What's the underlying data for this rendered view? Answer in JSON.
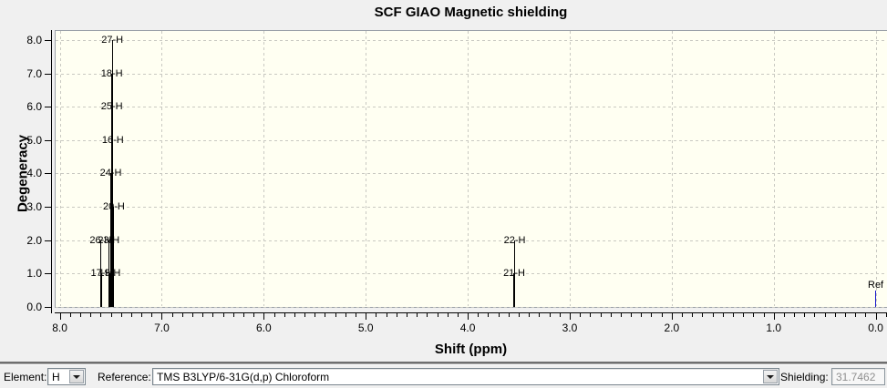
{
  "chart_data": {
    "type": "bar",
    "subtype": "stick-spectrum",
    "title": "SCF GIAO Magnetic shielding",
    "xlabel": "Shift (ppm)",
    "ylabel": "Degeneracy",
    "x_axis_reversed": true,
    "x_range_ppm": [
      8.05,
      -0.12
    ],
    "y_range": [
      0,
      8.3
    ],
    "grid": true,
    "x_tick_values": [
      8,
      7,
      6,
      5,
      4,
      3,
      2,
      1,
      0
    ],
    "x_tick_labels": [
      "8.0",
      "7.0",
      "6.0",
      "5.0",
      "4.0",
      "3.0",
      "2.0",
      "1.0",
      "0.0"
    ],
    "x_minor_tick_step": 0.1,
    "y_tick_values": [
      0,
      1,
      2,
      3,
      4,
      5,
      6,
      7,
      8
    ],
    "y_tick_labels": [
      "0.0",
      "1.0",
      "2.0",
      "3.0",
      "4.0",
      "5.0",
      "6.0",
      "7.0",
      "8.0"
    ],
    "peaks": [
      {
        "label": "27-H",
        "shift_ppm": 7.485,
        "degeneracy": 8
      },
      {
        "label": "18-H",
        "shift_ppm": 7.49,
        "degeneracy": 7
      },
      {
        "label": "25-H",
        "shift_ppm": 7.49,
        "degeneracy": 6
      },
      {
        "label": "16-H",
        "shift_ppm": 7.48,
        "degeneracy": 5
      },
      {
        "label": "24-H",
        "shift_ppm": 7.5,
        "degeneracy": 4
      },
      {
        "label": "20-H",
        "shift_ppm": 7.47,
        "degeneracy": 3
      },
      {
        "label": "26-H",
        "shift_ppm": 7.6,
        "degeneracy": 2
      },
      {
        "label": "23-H",
        "shift_ppm": 7.52,
        "degeneracy": 2
      },
      {
        "label": "17-H",
        "shift_ppm": 7.59,
        "degeneracy": 1
      },
      {
        "label": "19-H",
        "shift_ppm": 7.51,
        "degeneracy": 1
      },
      {
        "label": "22-H",
        "shift_ppm": 3.54,
        "degeneracy": 2
      },
      {
        "label": "21-H",
        "shift_ppm": 3.545,
        "degeneracy": 1
      },
      {
        "label": "Ref",
        "shift_ppm": 0.0,
        "degeneracy": 0.5,
        "is_reference": true,
        "label_dy": -6
      }
    ]
  },
  "toolbar": {
    "element_label": "Element:",
    "element_value": "H",
    "reference_label": "Reference:",
    "reference_value": "TMS B3LYP/6-31G(d,p) Chloroform",
    "shielding_label": "Shielding:",
    "shielding_value": "31.7462"
  },
  "icons": {
    "element_dropdown": "chevron-down-icon",
    "reference_dropdown": "chevron-down-icon"
  },
  "colors": {
    "window_bg": "#f0f0f0",
    "plot_bg": "#fffff2",
    "plot_border": "#9aa0a8",
    "grid": "#c9c9c2",
    "peak": "#000000",
    "ref_peak": "#1a1acc",
    "axis": "#000000",
    "disabled_text": "#8f8f8f"
  }
}
